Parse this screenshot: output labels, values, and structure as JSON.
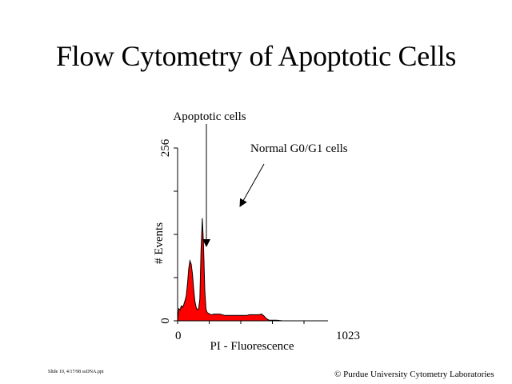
{
  "slide": {
    "title": "Flow Cytometry of Apoptotic Cells",
    "footer_left": "Slide 10, 4/17/98 ssDNA.ppt",
    "footer_right": "© Purdue University Cytometry Laboratories"
  },
  "chart_data": {
    "type": "area",
    "xlabel": "PI - Fluorescence",
    "ylabel": "# Events",
    "xlim": [
      0,
      1023
    ],
    "ylim": [
      0,
      256
    ],
    "x_tick_labels": [
      "0",
      "1023"
    ],
    "y_tick_labels": [
      "0",
      "256"
    ],
    "grid": false,
    "legend": "none",
    "fill_color": "#ff0000",
    "line_color": "#000000",
    "series": [
      {
        "x": [
          0,
          10,
          20,
          30,
          40,
          50,
          60,
          70,
          80,
          90,
          100,
          110,
          120,
          130,
          140,
          150,
          160,
          170,
          180,
          190,
          200,
          210,
          220,
          230,
          240,
          250,
          260,
          270,
          280,
          290,
          300,
          320,
          340,
          360,
          380,
          400,
          420,
          440,
          460,
          480,
          500,
          520,
          540,
          560,
          580,
          600,
          620,
          640,
          660,
          680,
          700,
          720,
          740,
          760,
          800,
          850,
          900,
          950,
          1023
        ],
        "values": [
          0,
          18,
          16,
          22,
          20,
          24,
          30,
          37,
          55,
          77,
          89,
          84,
          70,
          47,
          29,
          20,
          16,
          18,
          32,
          104,
          152,
          112,
          45,
          17,
          12,
          11,
          10,
          9,
          9,
          10,
          10,
          10,
          10,
          9,
          8,
          8,
          8,
          8,
          8,
          8,
          8,
          8,
          8,
          8,
          9,
          9,
          9,
          9,
          9,
          10,
          7,
          3,
          1,
          1,
          1,
          0,
          0,
          0,
          0
        ]
      }
    ],
    "annotations": [
      {
        "text": "Apoptotic cells",
        "x": 115,
        "y": 112
      },
      {
        "text": "Normal G0/G1 cells",
        "x": 200,
        "y": 152
      }
    ]
  }
}
